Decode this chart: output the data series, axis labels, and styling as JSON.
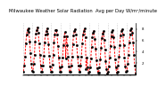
{
  "title": "Milwaukee Weather Solar Radiation  Avg per Day W/m²/minute",
  "title_fontsize": 3.8,
  "bg_color": "#ffffff",
  "line_color": "#ff0000",
  "marker_color": "#000000",
  "grid_color": "#aaaaaa",
  "ylim": [
    0,
    9.0
  ],
  "yticks": [
    2,
    4,
    6,
    8
  ],
  "ytick_labels": [
    "2",
    "4",
    "6",
    "8"
  ],
  "data": [
    0.5,
    1.5,
    3.2,
    5.5,
    7.0,
    7.8,
    8.2,
    7.5,
    5.8,
    3.8,
    1.8,
    0.6,
    0.5,
    1.8,
    3.5,
    5.8,
    7.2,
    7.9,
    8.3,
    7.3,
    5.5,
    3.5,
    1.5,
    0.5,
    0.4,
    1.6,
    3.3,
    5.6,
    7.1,
    7.7,
    8.1,
    7.2,
    5.3,
    3.3,
    1.4,
    0.4,
    0.5,
    1.7,
    3.4,
    5.7,
    7.0,
    7.8,
    7.9,
    7.0,
    5.0,
    3.0,
    1.3,
    0.4,
    0.4,
    1.4,
    3.0,
    5.2,
    6.8,
    7.5,
    2.8,
    6.8,
    5.1,
    3.1,
    1.4,
    0.4,
    0.4,
    1.5,
    3.1,
    5.3,
    6.9,
    7.6,
    8.0,
    7.1,
    5.2,
    3.2,
    1.5,
    0.5,
    0.5,
    1.6,
    3.2,
    5.4,
    7.0,
    7.7,
    8.1,
    6.5,
    1.0,
    3.0,
    1.2,
    0.3,
    0.4,
    1.3,
    2.8,
    4.9,
    6.6,
    7.4,
    7.7,
    6.3,
    4.5,
    2.5,
    1.1,
    0.3,
    0.3,
    1.2,
    2.6,
    4.7,
    6.4,
    7.2,
    7.6,
    6.1,
    4.3,
    2.3,
    1.0,
    0.2,
    0.4,
    1.4,
    2.9,
    5.0,
    6.7,
    7.5,
    7.8,
    6.6,
    4.8,
    2.7,
    1.2,
    0.3,
    0.5,
    1.6,
    3.1,
    5.2,
    6.9,
    7.7,
    8.0,
    7.0,
    5.2,
    3.0,
    1.4,
    0.5,
    0.6,
    1.8,
    3.4,
    5.6,
    7.1,
    7.9,
    8.2,
    7.4,
    5.6,
    3.4,
    1.6,
    0.2
  ]
}
